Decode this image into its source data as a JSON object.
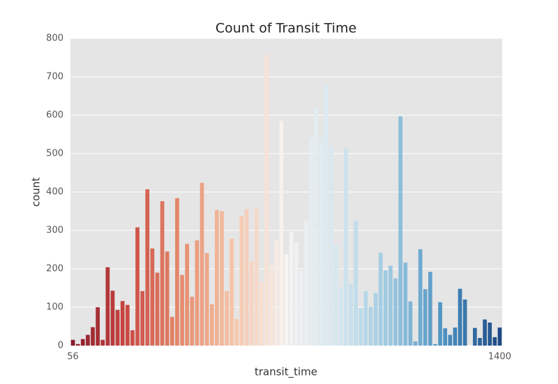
{
  "chart_data": {
    "type": "bar",
    "title": "Count of Transit Time",
    "x_label": "transit_time",
    "y_label": "count",
    "categories": [
      "56",
      null,
      null,
      null,
      null,
      null,
      null,
      null,
      null,
      null,
      null,
      null,
      null,
      null,
      null,
      null,
      null,
      null,
      null,
      null,
      null,
      null,
      null,
      null,
      null,
      null,
      null,
      null,
      null,
      null,
      null,
      null,
      null,
      null,
      null,
      null,
      null,
      null,
      null,
      null,
      null,
      null,
      null,
      null,
      null,
      null,
      null,
      null,
      null,
      null,
      null,
      null,
      null,
      null,
      null,
      null,
      null,
      null,
      null,
      null,
      null,
      null,
      null,
      null,
      null,
      null,
      null,
      null,
      null,
      null,
      null,
      null,
      null,
      null,
      null,
      null,
      null,
      null,
      null,
      null,
      null,
      null,
      null,
      null,
      null,
      null,
      "1400"
    ],
    "values": [
      15,
      4,
      17,
      28,
      48,
      100,
      15,
      204,
      143,
      93,
      116,
      106,
      40,
      308,
      142,
      407,
      253,
      190,
      376,
      245,
      75,
      384,
      184,
      265,
      127,
      274,
      424,
      241,
      108,
      353,
      350,
      142,
      278,
      69,
      337,
      356,
      219,
      356,
      165,
      757,
      210,
      274,
      586,
      238,
      296,
      268,
      195,
      326,
      542,
      620,
      540,
      677,
      520,
      262,
      152,
      513,
      160,
      325,
      98,
      142,
      101,
      137,
      242,
      196,
      208,
      175,
      597,
      216,
      115,
      11,
      251,
      147,
      192,
      4,
      113,
      45,
      28,
      47,
      148,
      120,
      0,
      46,
      20,
      68,
      60,
      22,
      47
    ],
    "palette": [
      "#8b1a2b",
      "#c94741",
      "#e58a6c",
      "#f6c4a8",
      "#f7f4f2",
      "#d3e6f0",
      "#97c7df",
      "#4a8fc1",
      "#1d4a86"
    ],
    "ylim": [
      0,
      800
    ],
    "yticks": [
      0,
      100,
      200,
      300,
      400,
      500,
      600,
      700,
      800
    ],
    "grid": true
  }
}
